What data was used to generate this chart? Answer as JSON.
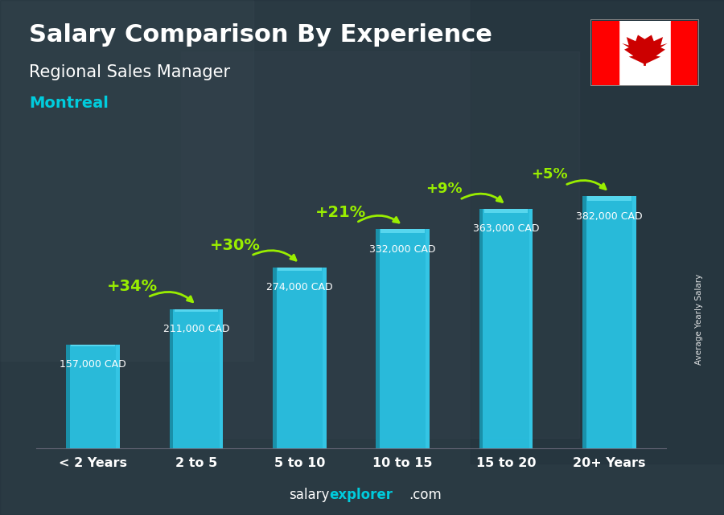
{
  "title_line1": "Salary Comparison By Experience",
  "subtitle": "Regional Sales Manager",
  "location": "Montreal",
  "categories": [
    "< 2 Years",
    "2 to 5",
    "5 to 10",
    "10 to 15",
    "15 to 20",
    "20+ Years"
  ],
  "values": [
    157000,
    211000,
    274000,
    332000,
    363000,
    382000
  ],
  "labels": [
    "157,000 CAD",
    "211,000 CAD",
    "274,000 CAD",
    "332,000 CAD",
    "363,000 CAD",
    "382,000 CAD"
  ],
  "label_above": [
    true,
    true,
    true,
    true,
    true,
    true
  ],
  "increases": [
    null,
    "+34%",
    "+30%",
    "+21%",
    "+9%",
    "+5%"
  ],
  "bar_color": "#29c5e6",
  "bar_left_color": "#1a8fa8",
  "bar_highlight_color": "#7deeff",
  "title_color": "#ffffff",
  "subtitle_color": "#ffffff",
  "location_color": "#00ccdd",
  "label_color": "#ffffff",
  "increase_color": "#99ee00",
  "arrow_color": "#99ee00",
  "ylabel": "Average Yearly Salary",
  "footer_salary": "salary",
  "footer_explorer": "explorer",
  "footer_com": ".com",
  "footer_salary_color": "#ffffff",
  "footer_explorer_color": "#00ccdd",
  "footer_com_color": "#ffffff",
  "ylim": [
    0,
    430000
  ],
  "bg_color": "#3a4a55",
  "overlay_color": "#1e2d38",
  "overlay_alpha": 0.55
}
